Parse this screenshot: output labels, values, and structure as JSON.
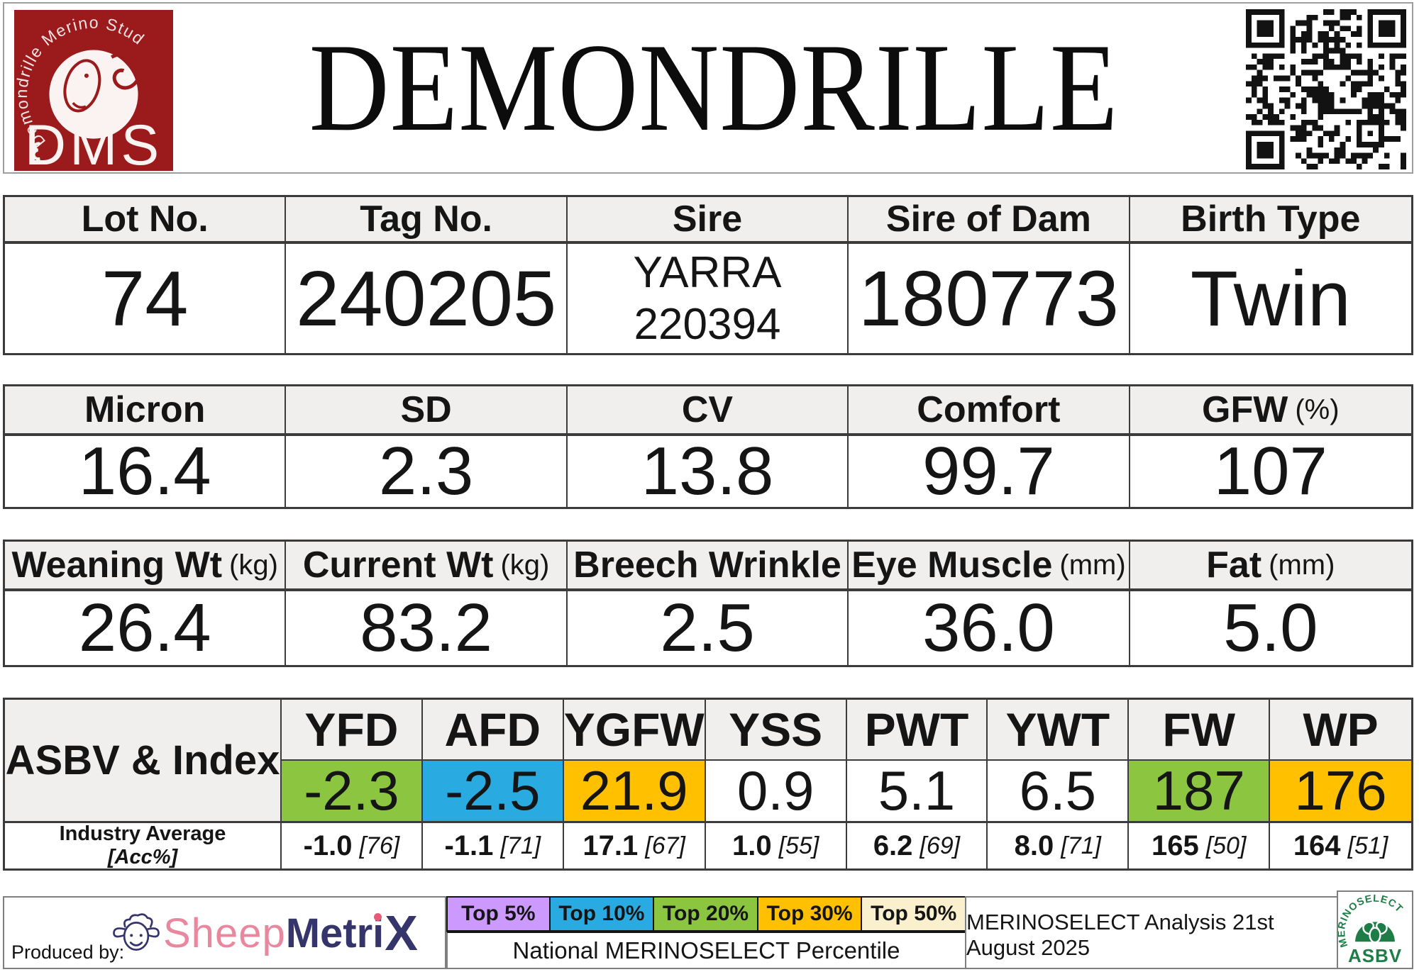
{
  "header": {
    "title": "DEMONDRILLE",
    "logo": {
      "arc_text": "Demondrille Merino Stud",
      "initials": "DMS"
    }
  },
  "identity_table": {
    "columns": [
      {
        "label": "Lot No.",
        "value": "74"
      },
      {
        "label": "Tag No.",
        "value": "240205"
      },
      {
        "label": "Sire",
        "value": "YARRA 220394",
        "lines": [
          "YARRA",
          "220394"
        ]
      },
      {
        "label": "Sire of Dam",
        "value": "180773"
      },
      {
        "label": "Birth Type",
        "value": "Twin"
      }
    ]
  },
  "fleece_table": {
    "columns": [
      {
        "label": "Micron",
        "unit": "",
        "value": "16.4"
      },
      {
        "label": "SD",
        "unit": "",
        "value": "2.3"
      },
      {
        "label": "CV",
        "unit": "",
        "value": "13.8"
      },
      {
        "label": "Comfort",
        "unit": "",
        "value": "99.7"
      },
      {
        "label": "GFW",
        "unit": "(%)",
        "value": "107"
      }
    ]
  },
  "body_table": {
    "columns": [
      {
        "label": "Weaning Wt",
        "unit": "(kg)",
        "value": "26.4"
      },
      {
        "label": "Current Wt",
        "unit": "(kg)",
        "value": "83.2"
      },
      {
        "label": "Breech Wrinkle",
        "unit": "",
        "value": "2.5"
      },
      {
        "label": "Eye Muscle",
        "unit": "(mm)",
        "value": "36.0"
      },
      {
        "label": "Fat",
        "unit": "(mm)",
        "value": "5.0"
      }
    ]
  },
  "asbv": {
    "row_label": "ASBV & Index",
    "industry_label": "Industry Average",
    "industry_sublabel": "[Acc%]",
    "columns": [
      {
        "code": "YFD",
        "value": "-2.3",
        "color": "#8cc540",
        "industry": "-1.0",
        "acc": "[76]"
      },
      {
        "code": "AFD",
        "value": "-2.5",
        "color": "#29abe2",
        "industry": "-1.1",
        "acc": "[71]"
      },
      {
        "code": "YGFW",
        "value": "21.9",
        "color": "#ffc000",
        "industry": "17.1",
        "acc": "[67]"
      },
      {
        "code": "YSS",
        "value": "0.9",
        "color": "",
        "industry": "1.0",
        "acc": "[55]"
      },
      {
        "code": "PWT",
        "value": "5.1",
        "color": "",
        "industry": "6.2",
        "acc": "[69]"
      },
      {
        "code": "YWT",
        "value": "6.5",
        "color": "",
        "industry": "8.0",
        "acc": "[71]"
      },
      {
        "code": "FW",
        "value": "187",
        "color": "#8cc540",
        "industry": "165",
        "acc": "[50]"
      },
      {
        "code": "WP",
        "value": "176",
        "color": "#ffc000",
        "industry": "164",
        "acc": "[51]"
      }
    ]
  },
  "footer": {
    "produced_by": "Produced by:",
    "sheepmetrix": {
      "sheep": "Sheep",
      "metri": "Metri",
      "x": "X"
    },
    "legend": [
      {
        "label": "Top 5%",
        "color": "#cc99ff"
      },
      {
        "label": "Top 10%",
        "color": "#29abe2"
      },
      {
        "label": "Top 20%",
        "color": "#8cc540"
      },
      {
        "label": "Top 30%",
        "color": "#ffc000"
      },
      {
        "label": "Top 50%",
        "color": "#fbf0cd"
      }
    ],
    "percentile_label": "National MERINOSELECT Percentile",
    "analysis_note": "MERINOSELECT Analysis 21st August 2025",
    "asbv_logo": {
      "arc_text": "MERINOSELECT",
      "text": "ASBV"
    }
  },
  "colors": {
    "logo_red": "#9b1b1d",
    "header_gray": "#f1efee",
    "top5_purple": "#cc99ff",
    "top10_blue": "#29abe2",
    "top20_green": "#8cc540",
    "top30_orange": "#ffc000",
    "top50_cream": "#fbf0cd",
    "merinoselect_green": "#1e7d46"
  }
}
